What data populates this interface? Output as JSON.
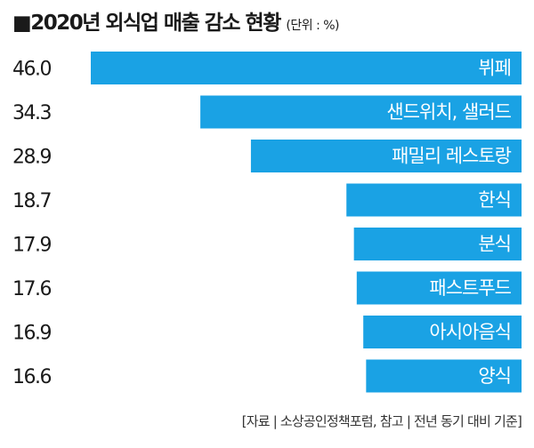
{
  "header": {
    "title": "2020년 외식업 매출 감소 현황",
    "unit": "(단위 : %)"
  },
  "footer": {
    "source": "[자료 | 소상공인정책포럼, 참고 | 전년 동기 대비 기준]"
  },
  "colors": {
    "bar": "#1aa2e4",
    "text": "#1a1a1a",
    "bar_label": "#ffffff"
  },
  "chart_data": {
    "type": "bar",
    "orientation": "horizontal",
    "title": "2020년 외식업 매출 감소 현황",
    "unit": "%",
    "categories": [
      "뷔페",
      "샌드위치, 샐러드",
      "패밀리 레스토랑",
      "한식",
      "분식",
      "패스트푸드",
      "아시아음식",
      "양식"
    ],
    "value_labels": [
      "46.0",
      "34.3",
      "28.9",
      "18.7",
      "17.9",
      "17.6",
      "16.9",
      "16.6"
    ],
    "values": [
      46.0,
      34.3,
      28.9,
      18.7,
      17.9,
      17.6,
      16.9,
      16.6
    ],
    "xlim": [
      0,
      46.0
    ],
    "grid": false,
    "legend": "none"
  }
}
